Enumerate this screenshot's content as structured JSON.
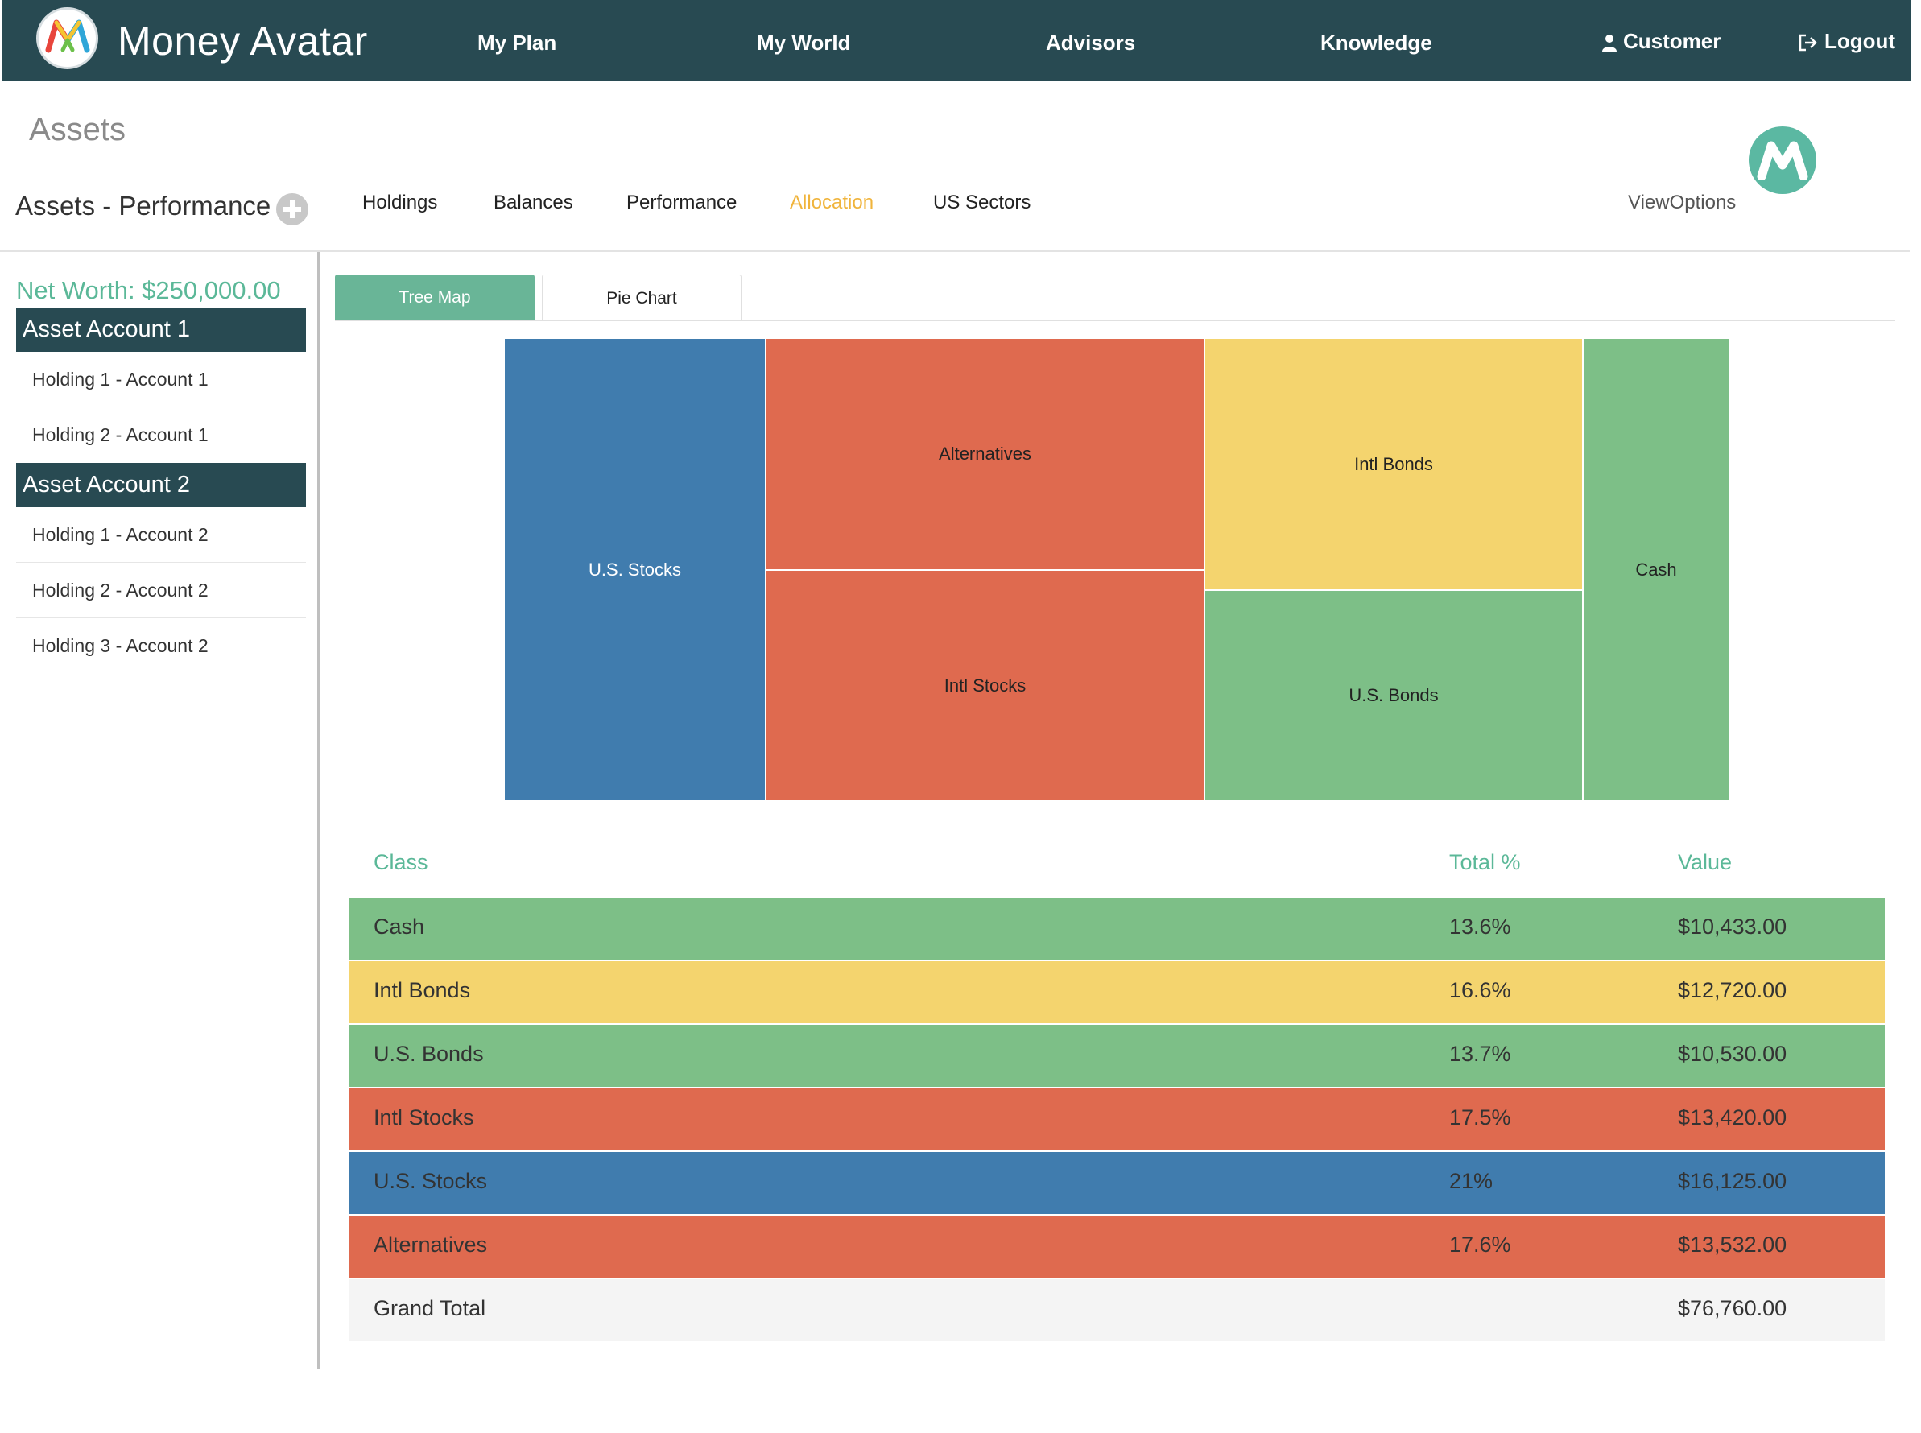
{
  "nav": {
    "brand": "Money Avatar",
    "links": [
      "My Plan",
      "My World",
      "Advisors",
      "Knowledge"
    ],
    "customer": "Customer",
    "logout": "Logout"
  },
  "page": {
    "title": "Assets",
    "subtitle": "Assets - Performance",
    "subtabs": [
      "Holdings",
      "Balances",
      "Performance",
      "Allocation",
      "US Sectors"
    ],
    "active_subtab": "Allocation",
    "view_options": "ViewOptions"
  },
  "sidebar": {
    "net_worth": "Net Worth: $250,000.00",
    "accounts": [
      {
        "name": "Asset Account 1",
        "holdings": [
          "Holding 1 - Account 1",
          "Holding 2 - Account 1"
        ]
      },
      {
        "name": "Asset Account 2",
        "holdings": [
          "Holding 1 - Account 2",
          "Holding 2 - Account 2",
          "Holding 3 - Account 2"
        ]
      }
    ]
  },
  "chart_tabs": {
    "items": [
      "Tree Map",
      "Pie Chart"
    ],
    "active": "Tree Map"
  },
  "colors": {
    "nav": "#284a52",
    "accent_green": "#5bb898",
    "active_tab": "#f0b43c",
    "cash": "#7dbf87",
    "bonds": "#f4d46e",
    "stocks_red": "#df6a4f",
    "us_stocks": "#407cae"
  },
  "chart_data": {
    "type": "treemap",
    "cells": [
      {
        "label": "U.S. Stocks",
        "value": 16125.0
      },
      {
        "label": "Alternatives",
        "value": 13532.0
      },
      {
        "label": "Intl Stocks",
        "value": 13420.0
      },
      {
        "label": "Intl Bonds",
        "value": 12720.0
      },
      {
        "label": "U.S. Bonds",
        "value": 10530.0
      },
      {
        "label": "Cash",
        "value": 10433.0
      }
    ]
  },
  "table": {
    "headers": {
      "class": "Class",
      "pct": "Total %",
      "value": "Value"
    },
    "rows": [
      {
        "class": "Cash",
        "pct": "13.6%",
        "value": "$10,433.00",
        "color": "#7dbf87"
      },
      {
        "class": "Intl Bonds",
        "pct": "16.6%",
        "value": "$12,720.00",
        "color": "#f4d46e"
      },
      {
        "class": "U.S. Bonds",
        "pct": "13.7%",
        "value": "$10,530.00",
        "color": "#7dbf87"
      },
      {
        "class": "Intl Stocks",
        "pct": "17.5%",
        "value": "$13,420.00",
        "color": "#df6a4f"
      },
      {
        "class": "U.S. Stocks",
        "pct": "21%",
        "value": "$16,125.00",
        "color": "#407cae"
      },
      {
        "class": "Alternatives",
        "pct": "17.6%",
        "value": "$13,532.00",
        "color": "#df6a4f"
      }
    ],
    "grand_total_label": "Grand Total",
    "grand_total_value": "$76,760.00"
  }
}
